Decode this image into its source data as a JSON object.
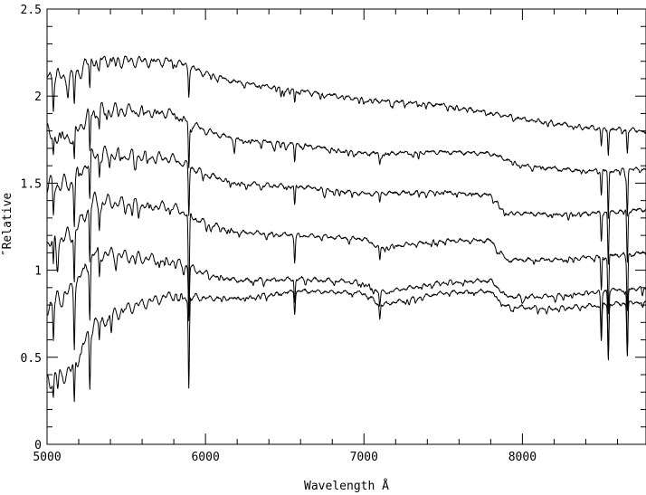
{
  "chart_data": {
    "type": "line",
    "title": "",
    "xlabel": "Wavelength Å",
    "ylabel": "″Relative",
    "xlim": [
      5000,
      8780
    ],
    "ylim": [
      0,
      2.5
    ],
    "grid": false,
    "xticks": {
      "major": [
        5000,
        6000,
        7000,
        8000
      ],
      "minor_step": 200,
      "labels": [
        "5000",
        "6000",
        "7000",
        "8000"
      ]
    },
    "yticks": {
      "major": [
        0,
        0.5,
        1,
        1.5,
        2,
        2.5
      ],
      "minor_step": 0.1,
      "labels": [
        "0",
        "0.5",
        "1",
        "1.5",
        "2",
        "2.5"
      ]
    },
    "series": [
      {
        "continuum": [
          [
            5000,
            2.12
          ],
          [
            5150,
            2.1
          ],
          [
            5300,
            2.22
          ],
          [
            5500,
            2.2
          ],
          [
            5800,
            2.2
          ],
          [
            6000,
            2.13
          ],
          [
            6200,
            2.08
          ],
          [
            6600,
            2.03
          ],
          [
            7000,
            1.98
          ],
          [
            7500,
            1.95
          ],
          [
            8000,
            1.87
          ],
          [
            8400,
            1.82
          ],
          [
            8780,
            1.8
          ]
        ],
        "lines": [
          [
            5040,
            0.08
          ],
          [
            5172,
            0.16
          ],
          [
            5270,
            0.16
          ],
          [
            5330,
            0.06
          ],
          [
            5895,
            0.15
          ],
          [
            6563,
            0.08
          ],
          [
            8498,
            0.1
          ],
          [
            8542,
            0.15
          ],
          [
            8662,
            0.13
          ]
        ]
      },
      {
        "continuum": [
          [
            5000,
            1.78
          ],
          [
            5150,
            1.77
          ],
          [
            5300,
            1.92
          ],
          [
            5500,
            1.92
          ],
          [
            5800,
            1.9
          ],
          [
            6000,
            1.8
          ],
          [
            6200,
            1.75
          ],
          [
            6600,
            1.72
          ],
          [
            7000,
            1.67
          ],
          [
            7500,
            1.68
          ],
          [
            7800,
            1.67
          ],
          [
            8000,
            1.6
          ],
          [
            8400,
            1.57
          ],
          [
            8780,
            1.58
          ]
        ],
        "lines": [
          [
            5040,
            0.12
          ],
          [
            5172,
            0.2
          ],
          [
            5270,
            0.22
          ],
          [
            5330,
            0.1
          ],
          [
            5895,
            0.25
          ],
          [
            6563,
            0.1
          ],
          [
            7100,
            0.04
          ],
          [
            8498,
            0.14
          ],
          [
            8542,
            0.28
          ],
          [
            8662,
            0.26
          ]
        ]
      },
      {
        "continuum": [
          [
            5000,
            1.48
          ],
          [
            5150,
            1.5
          ],
          [
            5300,
            1.67
          ],
          [
            5500,
            1.66
          ],
          [
            5800,
            1.64
          ],
          [
            6000,
            1.55
          ],
          [
            6200,
            1.5
          ],
          [
            6600,
            1.48
          ],
          [
            7000,
            1.44
          ],
          [
            7500,
            1.45
          ],
          [
            7800,
            1.43
          ],
          [
            7900,
            1.33
          ],
          [
            8200,
            1.32
          ],
          [
            8500,
            1.33
          ],
          [
            8780,
            1.35
          ]
        ],
        "lines": [
          [
            5040,
            0.15
          ],
          [
            5172,
            0.25
          ],
          [
            5270,
            0.25
          ],
          [
            5330,
            0.12
          ],
          [
            5895,
            0.28
          ],
          [
            6563,
            0.12
          ],
          [
            7100,
            0.05
          ],
          [
            8498,
            0.16
          ],
          [
            8542,
            0.3
          ],
          [
            8662,
            0.3
          ]
        ]
      },
      {
        "continuum": [
          [
            5000,
            1.15
          ],
          [
            5150,
            1.2
          ],
          [
            5300,
            1.4
          ],
          [
            5500,
            1.38
          ],
          [
            5800,
            1.36
          ],
          [
            6000,
            1.27
          ],
          [
            6200,
            1.22
          ],
          [
            6600,
            1.2
          ],
          [
            7000,
            1.18
          ],
          [
            7100,
            1.13
          ],
          [
            7500,
            1.17
          ],
          [
            7800,
            1.17
          ],
          [
            7900,
            1.06
          ],
          [
            8200,
            1.06
          ],
          [
            8500,
            1.08
          ],
          [
            8780,
            1.1
          ]
        ],
        "lines": [
          [
            5040,
            0.18
          ],
          [
            5172,
            0.28
          ],
          [
            5270,
            0.3
          ],
          [
            5330,
            0.14
          ],
          [
            5895,
            0.6
          ],
          [
            6563,
            0.13
          ],
          [
            7100,
            0.08
          ],
          [
            8498,
            0.2
          ],
          [
            8542,
            0.33
          ],
          [
            8662,
            0.33
          ]
        ]
      },
      {
        "continuum": [
          [
            5000,
            0.8
          ],
          [
            5150,
            0.88
          ],
          [
            5300,
            1.1
          ],
          [
            5500,
            1.08
          ],
          [
            5800,
            1.05
          ],
          [
            6000,
            0.98
          ],
          [
            6200,
            0.94
          ],
          [
            6600,
            0.95
          ],
          [
            7000,
            0.93
          ],
          [
            7100,
            0.87
          ],
          [
            7500,
            0.93
          ],
          [
            7800,
            0.94
          ],
          [
            7900,
            0.85
          ],
          [
            8200,
            0.85
          ],
          [
            8500,
            0.88
          ],
          [
            8780,
            0.9
          ]
        ],
        "lines": [
          [
            5040,
            0.2
          ],
          [
            5172,
            0.32
          ],
          [
            5270,
            0.32
          ],
          [
            5330,
            0.15
          ],
          [
            5895,
            0.3
          ],
          [
            6563,
            0.14
          ],
          [
            7100,
            0.07
          ],
          [
            8498,
            0.25
          ],
          [
            8542,
            0.38
          ],
          [
            8662,
            0.38
          ]
        ]
      },
      {
        "continuum": [
          [
            5000,
            0.37
          ],
          [
            5150,
            0.42
          ],
          [
            5300,
            0.7
          ],
          [
            5500,
            0.78
          ],
          [
            5800,
            0.86
          ],
          [
            6000,
            0.84
          ],
          [
            6200,
            0.84
          ],
          [
            6600,
            0.88
          ],
          [
            7000,
            0.87
          ],
          [
            7100,
            0.8
          ],
          [
            7500,
            0.87
          ],
          [
            7800,
            0.88
          ],
          [
            7900,
            0.79
          ],
          [
            8200,
            0.78
          ],
          [
            8500,
            0.8
          ],
          [
            8780,
            0.82
          ]
        ],
        "lines": [
          [
            5040,
            0.12
          ],
          [
            5172,
            0.25
          ],
          [
            5270,
            0.28
          ],
          [
            5330,
            0.12
          ],
          [
            5895,
            0.52
          ],
          [
            6563,
            0.12
          ],
          [
            7100,
            0.07
          ],
          [
            8498,
            0.2
          ],
          [
            8542,
            0.3
          ],
          [
            8662,
            0.3
          ]
        ]
      }
    ]
  }
}
